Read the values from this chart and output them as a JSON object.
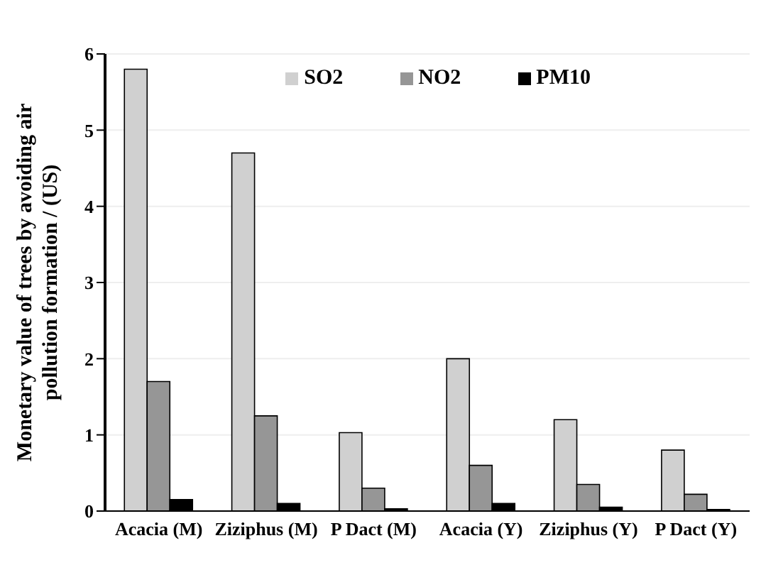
{
  "chart_data": {
    "type": "bar",
    "ylabel": "Monetary value of trees by avoiding air pollution formation / (US)",
    "categories": [
      "Acacia (M)",
      "Ziziphus (M)",
      "P Dact (M)",
      "Acacia (Y)",
      "Ziziphus (Y)",
      "P Dact (Y)"
    ],
    "series": [
      {
        "name": "SO2",
        "color": "#d0d0d0",
        "values": [
          5.8,
          4.7,
          1.03,
          2.0,
          1.2,
          0.8
        ]
      },
      {
        "name": "NO2",
        "color": "#969696",
        "values": [
          1.7,
          1.25,
          0.3,
          0.6,
          0.35,
          0.22
        ]
      },
      {
        "name": "PM10",
        "color": "#000000",
        "values": [
          0.15,
          0.1,
          0.03,
          0.1,
          0.05,
          0.02
        ]
      }
    ],
    "ylim": [
      0,
      6
    ],
    "yticks": [
      0,
      1,
      2,
      3,
      4,
      5,
      6
    ],
    "grid": "y",
    "legend": "top right"
  }
}
